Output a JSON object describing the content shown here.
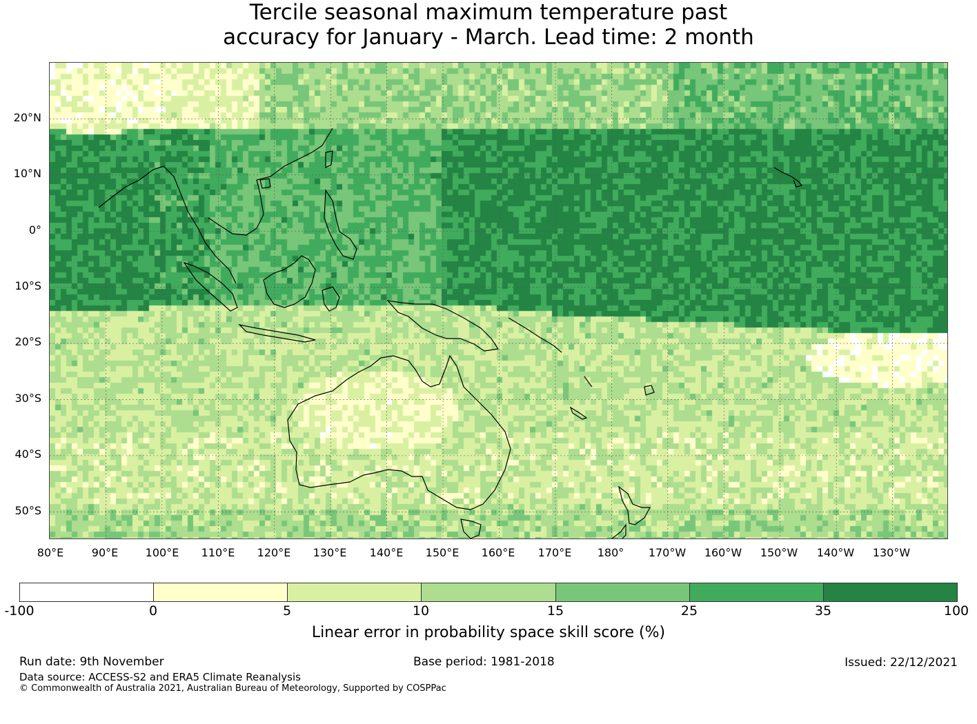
{
  "title": {
    "line1": "Tercile seasonal maximum temperature past",
    "line2": "accuracy for January - March. Lead time: 2 month"
  },
  "map": {
    "lat_labels": [
      "20°N",
      "10°N",
      "0°",
      "10°S",
      "20°S",
      "30°S",
      "40°S",
      "50°S"
    ],
    "lon_labels": [
      "80°E",
      "90°E",
      "100°E",
      "110°E",
      "120°E",
      "130°E",
      "140°E",
      "150°E",
      "160°E",
      "170°E",
      "180°",
      "170°W",
      "160°W",
      "150°W",
      "140°W",
      "130°W"
    ],
    "lat_range": [
      -55,
      30
    ],
    "lon_range": [
      80,
      240
    ],
    "gridlines": true
  },
  "colorbar": {
    "ticks": [
      "-100",
      "0",
      "5",
      "10",
      "15",
      "25",
      "35",
      "100"
    ],
    "colors": [
      "#ffffff",
      "#ffffcc",
      "#d9f0a3",
      "#addd8e",
      "#78c679",
      "#41ab5d",
      "#238443"
    ],
    "label": "Linear error in probability space skill score (%)"
  },
  "footer": {
    "run_date": "Run date: 9th November",
    "base_period": "Base period: 1981-2018",
    "issued": "Issued: 22/12/2021",
    "data_source": "Data source: ACCESS-S2 and ERA5 Climate Reanalysis",
    "copyright": "© Commonwealth of Australia 2021, Australian Bureau of Meteorology, Supported by COSPPac"
  }
}
